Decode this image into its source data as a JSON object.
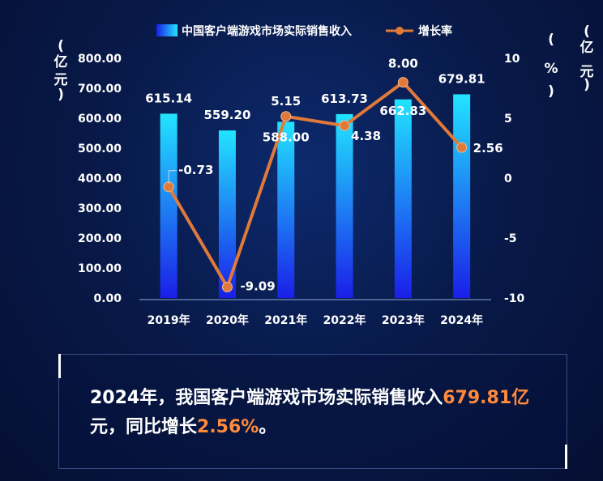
{
  "chart_data": {
    "type": "bar+line",
    "legend": {
      "placement": "top-center",
      "bar_label": "中国客户端游戏市场实际销售收入",
      "line_label": "增长率"
    },
    "categories": [
      "2019年",
      "2020年",
      "2021年",
      "2022年",
      "2023年",
      "2024年"
    ],
    "bar_series": {
      "name": "中国客户端游戏市场实际销售收入",
      "values": [
        615.14,
        559.2,
        588.0,
        613.73,
        662.83,
        679.81
      ],
      "labels": [
        "615.14",
        "559.20",
        "588.00",
        "613.73",
        "662.83",
        "679.81"
      ]
    },
    "line_series": {
      "name": "增长率",
      "values": [
        -0.73,
        -9.09,
        5.15,
        4.38,
        8.0,
        2.56
      ],
      "labels": [
        "-0.73",
        "-9.09",
        "5.15",
        "4.38",
        "8.00",
        "2.56"
      ]
    },
    "y_left": {
      "label": "（亿元）",
      "min": 0,
      "max": 800,
      "ticks": [
        "0.00",
        "100.00",
        "200.00",
        "300.00",
        "400.00",
        "500.00",
        "600.00",
        "700.00",
        "800.00"
      ]
    },
    "y_right": {
      "label": "（%）",
      "min": -10,
      "max": 10,
      "ticks": [
        "-10",
        "-5",
        "0",
        "5",
        "10"
      ]
    },
    "y_right_outer_label": "（亿元）",
    "colors": {
      "bar_top": "#22e4ff",
      "bar_bottom": "#1a1fe8",
      "line": "#e07a3a",
      "marker": "#e07a3a"
    }
  },
  "summary": {
    "part1": "2024年，我国客户端游戏市场实际销售收入",
    "highlight1": "679.81亿",
    "part2": "元，同比增长",
    "highlight2": "2.56%",
    "part3": "。"
  }
}
